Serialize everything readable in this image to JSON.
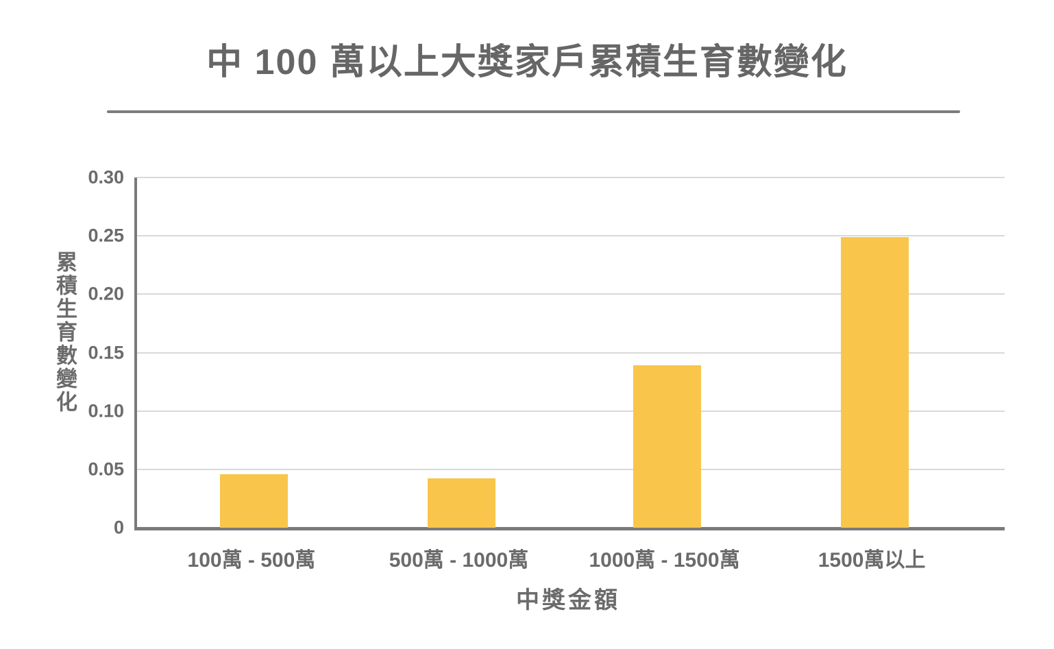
{
  "chart_data": {
    "type": "bar",
    "title": "中 100 萬以上大獎家戶累積生育數變化",
    "categories": [
      "100萬 - 500萬",
      "500萬 - 1000萬",
      "1000萬 - 1500萬",
      "1500萬以上"
    ],
    "values": [
      0.046,
      0.042,
      0.139,
      0.249
    ],
    "xlabel": "中獎金額",
    "ylabel": "累積生育數變化",
    "ylim": [
      0,
      0.3
    ],
    "ytick_labels": [
      "0.30",
      "0.25",
      "0.20",
      "0.15",
      "0.10",
      "0.05",
      "0"
    ],
    "ytick_values": [
      0.3,
      0.25,
      0.2,
      0.15,
      0.1,
      0.05,
      0
    ],
    "grid": true,
    "legend_position": "none",
    "colors": {
      "bar": "#F9C54A",
      "text": "#6b6b6b",
      "title": "#666666",
      "axis": "#7a7a7a",
      "gridline": "#d9d9d9",
      "background": "#ffffff"
    }
  }
}
